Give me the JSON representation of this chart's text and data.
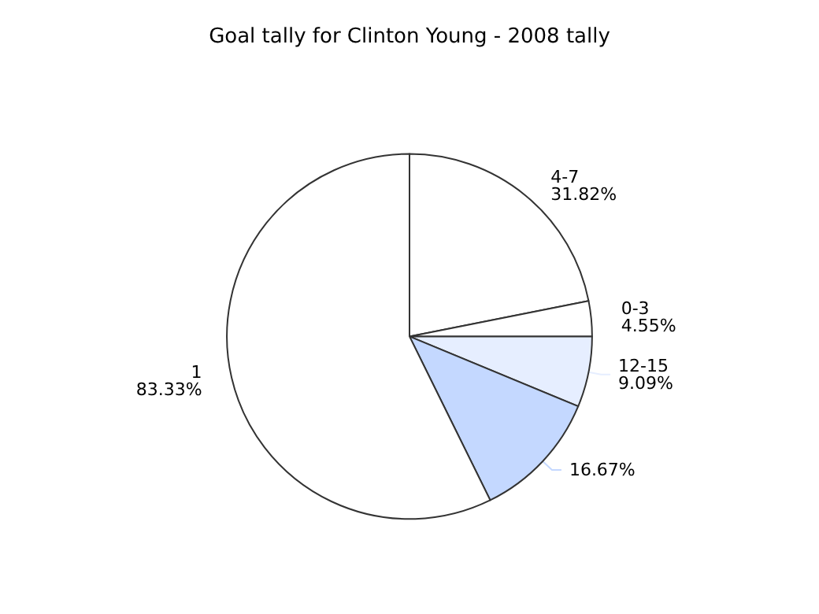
{
  "chart_data": {
    "type": "pie",
    "title": "Goal tally for Clinton Young - 2008 tally",
    "categories": [
      "4-7",
      "0-3",
      "12-15",
      null,
      "1"
    ],
    "values": [
      31.82,
      4.55,
      9.09,
      16.67,
      83.33
    ],
    "value_labels": [
      "31.82%",
      "4.55%",
      "9.09%",
      "16.67%",
      "83.33%"
    ],
    "colors": [
      "#ffffff",
      "#ffffff",
      "#e6eeff",
      "#c4d8ff",
      "#ffffff"
    ],
    "legend": false
  }
}
